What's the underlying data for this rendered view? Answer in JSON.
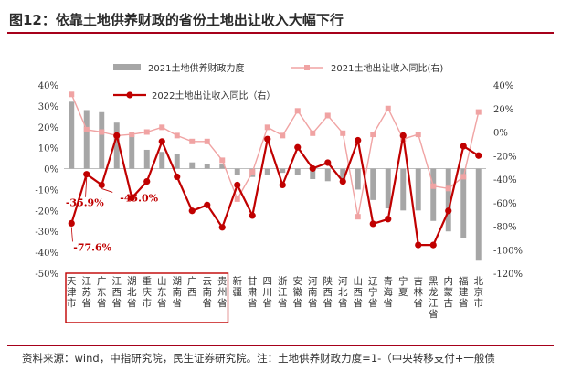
{
  "figure": {
    "title": "图12：依靠土地供养财政的省份土地出让收入大幅下行",
    "source_note": "资料来源：wind，中指研究院，民生证券研究院。注：土地供养财政力度=1-（中央转移支付+一般债"
  },
  "chart_data": {
    "type": "bar",
    "categories": [
      "天津市",
      "江苏省",
      "广东省",
      "江西省",
      "湖北省",
      "重庆市",
      "山东省",
      "湖南省",
      "广西",
      "云南省",
      "贵州省",
      "新疆",
      "甘肃省",
      "四川省",
      "浙江省",
      "安徽省",
      "河南省",
      "陕西省",
      "河北省",
      "山西省",
      "辽宁省",
      "青海省",
      "宁夏",
      "吉林省",
      "黑龙江省",
      "内蒙古",
      "福建省",
      "北京市"
    ],
    "series": [
      {
        "name": "2021土地供养财政力度",
        "kind": "bar",
        "axis": "left",
        "color": "#a6a6a6",
        "values": [
          32,
          28,
          27,
          22,
          16,
          9,
          8,
          7,
          3,
          2,
          2,
          -3,
          -4,
          -3,
          -2,
          -3,
          -5,
          -6,
          -5,
          -10,
          -15,
          -19,
          -20,
          -20,
          -25,
          -30,
          -33,
          -44
        ]
      },
      {
        "name": "2021土地出让收入同比(右)",
        "kind": "line",
        "axis": "right",
        "color": "#f0a3a3",
        "values": [
          32,
          2,
          0,
          -3,
          -2,
          0,
          4,
          -3,
          -8,
          -8,
          -24,
          -57,
          -34,
          4,
          -3,
          18,
          -1,
          14,
          -1,
          -72,
          -2,
          20,
          -6,
          -2,
          -46,
          -48,
          -38,
          17
        ]
      },
      {
        "name": "2022土地出让收入同比（右）",
        "kind": "line",
        "axis": "right",
        "color": "#c00000",
        "values": [
          -77.6,
          -35.9,
          -45.0,
          -3.0,
          -56.0,
          -42.0,
          -8.0,
          -38.0,
          -67.0,
          -62.0,
          -81.0,
          -45.0,
          -71.0,
          -6.0,
          -45.0,
          -13.0,
          -31.0,
          -26.0,
          -42.0,
          -7.0,
          -78.0,
          -74.0,
          -3.0,
          -96.0,
          -96.0,
          -67.0,
          -12.0,
          -20.0
        ]
      }
    ],
    "left_axis": {
      "min": -50,
      "max": 40,
      "step": 10,
      "ticks": [
        "40%",
        "30%",
        "20%",
        "10%",
        "0%",
        "-10%",
        "-20%",
        "-30%",
        "-40%",
        "-50%"
      ]
    },
    "right_axis": {
      "min": -120,
      "max": 40,
      "step": 20,
      "ticks": [
        "40%",
        "20%",
        "0%",
        "-20%",
        "-40%",
        "-60%",
        "-80%",
        "-100%",
        "-120%"
      ]
    },
    "annotations": [
      {
        "text": "-35.9%",
        "category": "江苏省",
        "color": "#c00000"
      },
      {
        "text": "-45.0%",
        "category": "广东省",
        "color": "#c00000"
      },
      {
        "text": "-77.6%",
        "category": "天津市",
        "color": "#c00000"
      }
    ],
    "highlight_group": [
      "天津市",
      "江苏省",
      "广东省",
      "江西省",
      "湖北省",
      "重庆市",
      "山东省",
      "湖南省",
      "广西",
      "云南省",
      "贵州省"
    ],
    "legend_position": "top"
  }
}
